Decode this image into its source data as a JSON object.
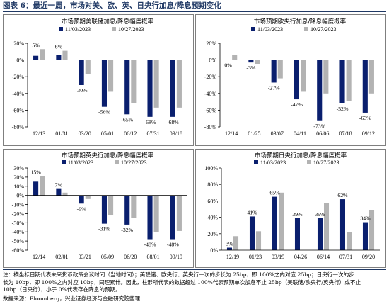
{
  "figure_title": "图表 6：最近一周，市场对美、欧、英、日央行加息/降息预期变化",
  "colors": {
    "series_a": "#0a1f6e",
    "series_b": "#b3b3b3",
    "title": "#1f3864"
  },
  "chart_data": [
    {
      "type": "bar",
      "title": "市场预期美联储加息/降息幅度概率",
      "categories": [
        "12/13",
        "01/31",
        "03/20",
        "05/01",
        "06/12",
        "07/31",
        "09/18"
      ],
      "series": [
        {
          "name": "11/03/2023",
          "values": [
            5,
            6,
            -30,
            -56,
            -65,
            -68,
            -68
          ]
        },
        {
          "name": "10/27/2023",
          "values": [
            13,
            11,
            -17,
            -38,
            -52,
            -57,
            -57
          ]
        }
      ],
      "data_labels": [
        "5%",
        "6%",
        "-30%",
        "-56%",
        "-65%",
        "-68%",
        "-68%"
      ],
      "ylim": [
        -80,
        20
      ],
      "yticks": [
        20,
        0,
        -20,
        -40,
        -60,
        -80
      ],
      "ytick_labels": [
        "20%",
        "0%",
        "-20%",
        "-40%",
        "-60%",
        "-80%"
      ],
      "legend": "top"
    },
    {
      "type": "bar",
      "title": "市场预期欧央行加息/降息幅度概率",
      "categories": [
        "12/14",
        "01/25",
        "03/07",
        "04/11",
        "06/06",
        "07/18",
        "09/12"
      ],
      "series": [
        {
          "name": "11/03/2023",
          "values": [
            0,
            -3,
            -27,
            -47,
            -73,
            -52,
            -63
          ]
        },
        {
          "name": "10/27/2023",
          "values": [
            6,
            -5,
            -22,
            -38,
            -40,
            -49,
            -40
          ]
        }
      ],
      "data_labels": [
        "0%",
        "-3%",
        "-27%",
        "-47%",
        "-73%",
        "-52%",
        "-63%"
      ],
      "ylim": [
        -80,
        20
      ],
      "yticks": [
        20,
        0,
        -20,
        -40,
        -60,
        -80
      ],
      "ytick_labels": [
        "20%",
        "0%",
        "-20%",
        "-40%",
        "-60%",
        "-80%"
      ],
      "legend": "top"
    },
    {
      "type": "bar",
      "title": "市场预期英央行加息/降息幅度概率",
      "categories": [
        "12/14",
        "02/01",
        "03/21",
        "05/09",
        "06/20",
        "08/01",
        "09/19"
      ],
      "series": [
        {
          "name": "11/03/2023",
          "values": [
            15,
            7,
            -9,
            -31,
            -32,
            -48,
            -48
          ]
        },
        {
          "name": "10/27/2023",
          "values": [
            21,
            3,
            -4,
            -22,
            -25,
            -40,
            -39
          ]
        }
      ],
      "data_labels": [
        "15%",
        "7%",
        "-9%",
        "-31%",
        "-32%",
        "-48%",
        "-48%"
      ],
      "ylim": [
        -60,
        30
      ],
      "yticks": [
        30,
        20,
        10,
        0,
        -10,
        -20,
        -30,
        -40,
        -50,
        -60
      ],
      "ytick_labels": [
        "30%",
        "20%",
        "10%",
        "0%",
        "-10%",
        "-20%",
        "-30%",
        "-40%",
        "-50%",
        "-60%"
      ],
      "legend": "top"
    },
    {
      "type": "bar",
      "title": "市场预期日央行加息/降息幅度概率",
      "categories": [
        "12/19",
        "01/23",
        "03/19",
        "04/26",
        "06/14",
        "07/31",
        "09/20"
      ],
      "series": [
        {
          "name": "11/03/2023",
          "values": [
            3,
            41,
            65,
            39,
            39,
            62,
            34
          ]
        },
        {
          "name": "10/27/2023",
          "values": [
            17,
            23,
            70,
            0,
            57,
            22,
            49
          ]
        }
      ],
      "data_labels": [
        "3%",
        "41%",
        "65%",
        "39%",
        "39%",
        "62%",
        "34%"
      ],
      "ylim": [
        0,
        100
      ],
      "yticks": [
        100,
        80,
        60,
        40,
        20,
        0
      ],
      "ytick_labels": [
        "100%",
        "80%",
        "60%",
        "40%",
        "20%",
        "0%"
      ],
      "legend": "top"
    }
  ],
  "note": [
    "注：横坐标日期代表未来货币政策会议时间（当地时间）；美联储、欧央行、英央行一次的步长为 25bp，即 100%之内对应 25bp；日央行一次的步",
    "长为 10bp，即 100%之内对应 10bp，同理累计。因此，柱形所代表的数据超过 100%代表预期单次加息不止 25bp（美联储/欧央行/英央行）或不止",
    "10bp（日央行），小于 0%代表存在降息的预期。"
  ],
  "source": "数据来源：Bloomberg，兴业证券经济与金融研究院整理"
}
